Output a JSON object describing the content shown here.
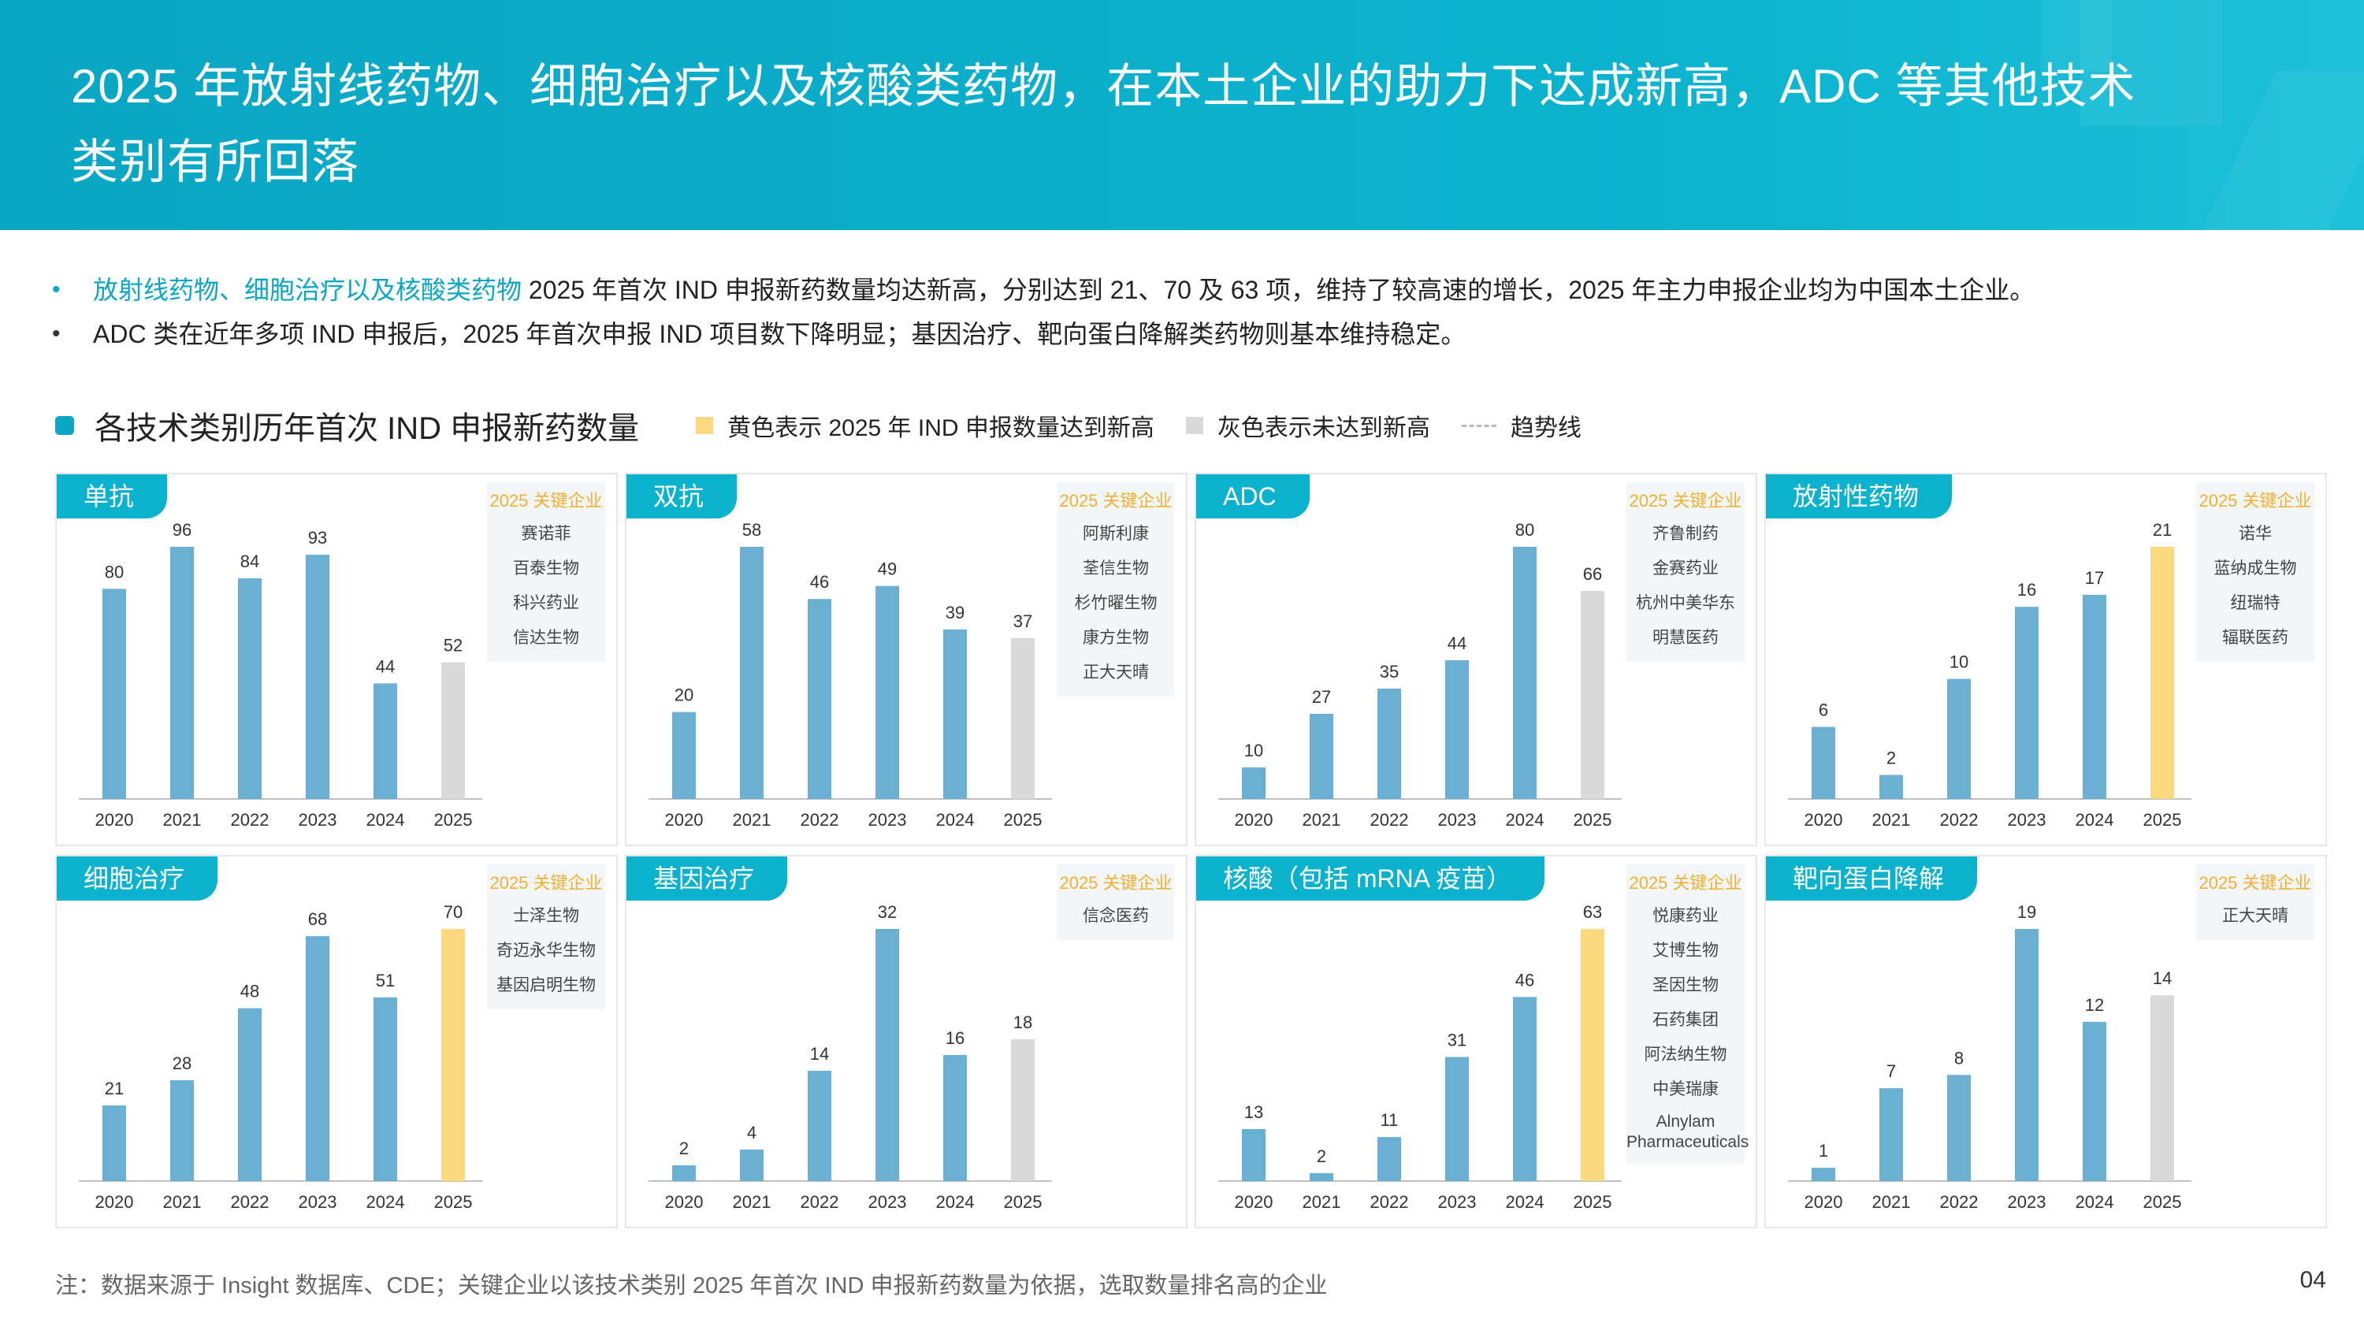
{
  "header": {
    "title": "2025 年放射线药物、细胞治疗以及核酸类药物，在本土企业的助力下达成新高，ADC 等其他技术类别有所回落"
  },
  "bullets": {
    "b1_highlight": "放射线药物、细胞治疗以及核酸类药物",
    "b1_rest": " 2025 年首次 IND 申报新药数量均达新高，分别达到 21、70 及 63 项，维持了较高速的增长，2025 年主力申报企业均为中国本土企业。",
    "b2": "ADC 类在近年多项 IND 申报后，2025 年首次申报 IND 项目数下降明显；基因治疗、靶向蛋白降解类药物则基本维持稳定。"
  },
  "legend": {
    "title": "各技术类别历年首次 IND 申报新药数量",
    "yellow_label": "黄色表示 2025 年 IND 申报数量达到新高",
    "gray_label": "灰色表示未达到新高",
    "trend_label": "趋势线"
  },
  "colors": {
    "accent": "#0bb2cd",
    "bar": "#6ab0d3",
    "new_high": "#fcd97f",
    "not_high": "#d9d9d9",
    "company_header": "#f2b030"
  },
  "company_header": "2025 关键企业",
  "chart_data": [
    {
      "type": "bar",
      "title": "单抗",
      "categories": [
        "2020",
        "2021",
        "2022",
        "2023",
        "2024",
        "2025"
      ],
      "values": [
        80,
        96,
        84,
        93,
        44,
        52
      ],
      "last_bar": "gray",
      "companies": [
        "赛诺菲",
        "百泰生物",
        "科兴药业",
        "信达生物"
      ]
    },
    {
      "type": "bar",
      "title": "双抗",
      "categories": [
        "2020",
        "2021",
        "2022",
        "2023",
        "2024",
        "2025"
      ],
      "values": [
        20,
        58,
        46,
        49,
        39,
        37
      ],
      "last_bar": "gray",
      "companies": [
        "阿斯利康",
        "荃信生物",
        "杉竹曜生物",
        "康方生物",
        "正大天晴"
      ]
    },
    {
      "type": "bar",
      "title": "ADC",
      "categories": [
        "2020",
        "2021",
        "2022",
        "2023",
        "2024",
        "2025"
      ],
      "values": [
        10,
        27,
        35,
        44,
        80,
        66
      ],
      "last_bar": "gray",
      "companies": [
        "齐鲁制药",
        "金赛药业",
        "杭州中美华东",
        "明慧医药"
      ]
    },
    {
      "type": "bar",
      "title": "放射性药物",
      "categories": [
        "2020",
        "2021",
        "2022",
        "2023",
        "2024",
        "2025"
      ],
      "values": [
        6,
        2,
        10,
        16,
        17,
        21
      ],
      "last_bar": "yellow",
      "companies": [
        "诺华",
        "蓝纳成生物",
        "纽瑞特",
        "辐联医药"
      ]
    },
    {
      "type": "bar",
      "title": "细胞治疗",
      "categories": [
        "2020",
        "2021",
        "2022",
        "2023",
        "2024",
        "2025"
      ],
      "values": [
        21,
        28,
        48,
        68,
        51,
        70
      ],
      "last_bar": "yellow",
      "companies": [
        "士泽生物",
        "奇迈永华生物",
        "基因启明生物"
      ]
    },
    {
      "type": "bar",
      "title": "基因治疗",
      "categories": [
        "2020",
        "2021",
        "2022",
        "2023",
        "2024",
        "2025"
      ],
      "values": [
        2,
        4,
        14,
        32,
        16,
        18
      ],
      "last_bar": "gray",
      "companies": [
        "信念医药"
      ]
    },
    {
      "type": "bar",
      "title": "核酸（包括 mRNA 疫苗）",
      "categories": [
        "2020",
        "2021",
        "2022",
        "2023",
        "2024",
        "2025"
      ],
      "values": [
        13,
        2,
        11,
        31,
        46,
        63
      ],
      "last_bar": "yellow",
      "companies": [
        "悦康药业",
        "艾博生物",
        "圣因生物",
        "石药集团",
        "阿法纳生物",
        "中美瑞康",
        "Alnylam Pharmaceuticals"
      ]
    },
    {
      "type": "bar",
      "title": "靶向蛋白降解",
      "categories": [
        "2020",
        "2021",
        "2022",
        "2023",
        "2024",
        "2025"
      ],
      "values": [
        1,
        7,
        8,
        19,
        12,
        14
      ],
      "last_bar": "gray",
      "companies": [
        "正大天晴"
      ]
    }
  ],
  "footnote": "注：数据来源于 Insight 数据库、CDE；关键企业以该技术类别 2025 年首次 IND 申报新药数量为依据，选取数量排名高的企业",
  "page_number": "04"
}
